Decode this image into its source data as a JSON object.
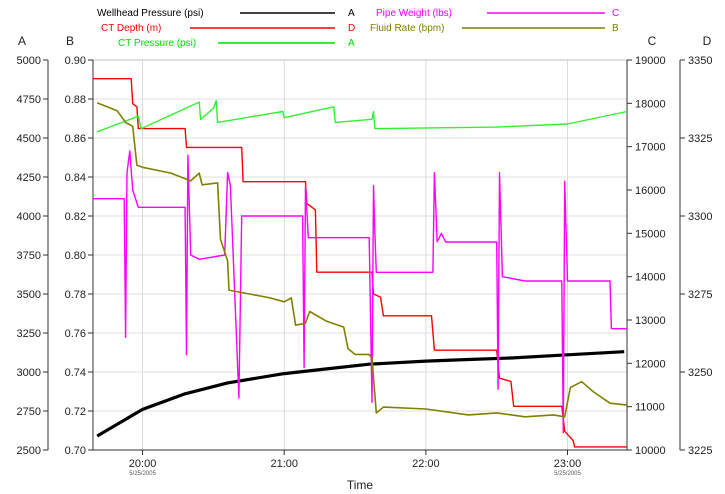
{
  "chart_data": {
    "type": "line",
    "xlabel": "Time",
    "x_ticks": [
      {
        "t": 20.0,
        "label": "20:00",
        "date": "5/25/2005"
      },
      {
        "t": 21.0,
        "label": "21:00",
        "date": ""
      },
      {
        "t": 22.0,
        "label": "22:00",
        "date": ""
      },
      {
        "t": 23.0,
        "label": "23:00",
        "date": "5/25/2005"
      }
    ],
    "xlim": [
      19.65,
      23.42
    ],
    "grid": true,
    "legend_position": "top",
    "axes": [
      {
        "id": "A",
        "letter": "A",
        "side": "left",
        "ylim": [
          2500,
          5000
        ],
        "ticks": [
          5000,
          4750,
          4500,
          4250,
          4000,
          3750,
          3500,
          3250,
          3000,
          2750,
          2500
        ],
        "tick_labels": [
          "5000",
          "4750",
          "4500",
          "4250",
          "4000",
          "3750",
          "3500",
          "3250",
          "3000",
          "2750",
          "2500"
        ]
      },
      {
        "id": "B",
        "letter": "B",
        "side": "left",
        "ylim": [
          0.7,
          0.9
        ],
        "ticks": [
          0.9,
          0.88,
          0.86,
          0.84,
          0.82,
          0.8,
          0.78,
          0.76,
          0.74,
          0.72,
          0.7
        ],
        "tick_labels": [
          "0.90",
          "0.88",
          "0.86",
          "0.84",
          "0.82",
          "0.80",
          "0.78",
          "0.76",
          "0.74",
          "0.72",
          "0.70"
        ]
      },
      {
        "id": "C",
        "letter": "C",
        "side": "right",
        "ylim": [
          10000,
          19000
        ],
        "ticks": [
          19000,
          18000,
          17000,
          16000,
          15000,
          14000,
          13000,
          12000,
          11000,
          10000
        ],
        "tick_labels": [
          "19000",
          "18000",
          "17000",
          "16000",
          "15000",
          "14000",
          "13000",
          "12000",
          "11000",
          "10000"
        ]
      },
      {
        "id": "D",
        "letter": "D",
        "side": "right",
        "ylim": [
          3225,
          3350
        ],
        "ticks": [
          3350,
          3325,
          3300,
          3275,
          3250,
          3225
        ],
        "tick_labels": [
          "3350",
          "3325",
          "3300",
          "3275",
          "3250",
          "3225"
        ]
      }
    ],
    "series": [
      {
        "name": "Wellhead Pressure (psi)",
        "axis": "A",
        "color": "#000000",
        "points": [
          [
            19.68,
            2590
          ],
          [
            20.0,
            2760
          ],
          [
            20.3,
            2860
          ],
          [
            20.6,
            2930
          ],
          [
            21.0,
            2990
          ],
          [
            21.3,
            3020
          ],
          [
            21.6,
            3050
          ],
          [
            22.0,
            3070
          ],
          [
            22.3,
            3080
          ],
          [
            22.6,
            3090
          ],
          [
            23.0,
            3110
          ],
          [
            23.4,
            3130
          ]
        ]
      },
      {
        "name": "CT Depth (m)",
        "axis": "D",
        "color": "#ff0000",
        "points": [
          [
            19.65,
            3344
          ],
          [
            19.92,
            3344
          ],
          [
            19.93,
            3336
          ],
          [
            19.96,
            3335
          ],
          [
            19.97,
            3328
          ],
          [
            20.3,
            3328
          ],
          [
            20.31,
            3322
          ],
          [
            20.7,
            3322
          ],
          [
            20.71,
            3311
          ],
          [
            21.15,
            3311
          ],
          [
            21.16,
            3304
          ],
          [
            21.22,
            3302
          ],
          [
            21.23,
            3282
          ],
          [
            21.62,
            3282
          ],
          [
            21.63,
            3275
          ],
          [
            21.68,
            3274
          ],
          [
            21.7,
            3268
          ],
          [
            22.04,
            3268
          ],
          [
            22.06,
            3257
          ],
          [
            22.5,
            3257
          ],
          [
            22.52,
            3248
          ],
          [
            22.6,
            3247
          ],
          [
            22.62,
            3239
          ],
          [
            22.96,
            3239
          ],
          [
            22.98,
            3231
          ],
          [
            23.04,
            3228
          ],
          [
            23.05,
            3226
          ],
          [
            23.42,
            3226
          ]
        ]
      },
      {
        "name": "CT Pressure (psi)",
        "axis": "A",
        "color": "#33ee33",
        "points": [
          [
            19.68,
            4540
          ],
          [
            19.97,
            4640
          ],
          [
            19.99,
            4560
          ],
          [
            20.4,
            4730
          ],
          [
            20.41,
            4620
          ],
          [
            20.5,
            4690
          ],
          [
            20.52,
            4740
          ],
          [
            20.53,
            4600
          ],
          [
            20.99,
            4670
          ],
          [
            21.0,
            4630
          ],
          [
            21.35,
            4700
          ],
          [
            21.36,
            4600
          ],
          [
            21.62,
            4620
          ],
          [
            21.63,
            4670
          ],
          [
            21.64,
            4560
          ],
          [
            22.5,
            4570
          ],
          [
            23.0,
            4590
          ],
          [
            23.42,
            4670
          ]
        ]
      },
      {
        "name": "Pipe Weight (lbs)",
        "axis": "C",
        "color": "#ff00ff",
        "points": [
          [
            19.65,
            15800
          ],
          [
            19.87,
            15800
          ],
          [
            19.88,
            12600
          ],
          [
            19.89,
            16400
          ],
          [
            19.91,
            16900
          ],
          [
            19.93,
            16000
          ],
          [
            19.97,
            15600
          ],
          [
            20.3,
            15600
          ],
          [
            20.31,
            12200
          ],
          [
            20.32,
            16800
          ],
          [
            20.34,
            14500
          ],
          [
            20.4,
            14400
          ],
          [
            20.58,
            14500
          ],
          [
            20.6,
            16400
          ],
          [
            20.62,
            16100
          ],
          [
            20.68,
            11200
          ],
          [
            20.7,
            15400
          ],
          [
            21.13,
            15400
          ],
          [
            21.14,
            11900
          ],
          [
            21.15,
            16100
          ],
          [
            21.17,
            14900
          ],
          [
            21.6,
            14900
          ],
          [
            21.62,
            11100
          ],
          [
            21.63,
            16100
          ],
          [
            21.64,
            15000
          ],
          [
            21.65,
            14100
          ],
          [
            22.05,
            14100
          ],
          [
            22.06,
            16400
          ],
          [
            22.08,
            14800
          ],
          [
            22.11,
            15000
          ],
          [
            22.14,
            14800
          ],
          [
            22.5,
            14800
          ],
          [
            22.51,
            11400
          ],
          [
            22.52,
            16400
          ],
          [
            22.54,
            14000
          ],
          [
            22.7,
            13900
          ],
          [
            22.96,
            13900
          ],
          [
            22.97,
            10400
          ],
          [
            22.98,
            16200
          ],
          [
            23.0,
            13900
          ],
          [
            23.2,
            13900
          ],
          [
            23.3,
            13900
          ],
          [
            23.31,
            12800
          ],
          [
            23.42,
            12800
          ]
        ]
      },
      {
        "name": "Fluid Rate (bpm)",
        "axis": "B",
        "color": "#808000",
        "points": [
          [
            19.68,
            0.878
          ],
          [
            19.75,
            0.876
          ],
          [
            19.82,
            0.874
          ],
          [
            19.88,
            0.868
          ],
          [
            19.93,
            0.866
          ],
          [
            19.96,
            0.846
          ],
          [
            20.0,
            0.845
          ],
          [
            20.2,
            0.842
          ],
          [
            20.34,
            0.838
          ],
          [
            20.4,
            0.842
          ],
          [
            20.42,
            0.836
          ],
          [
            20.53,
            0.837
          ],
          [
            20.55,
            0.808
          ],
          [
            20.6,
            0.797
          ],
          [
            20.61,
            0.782
          ],
          [
            20.9,
            0.778
          ],
          [
            21.0,
            0.776
          ],
          [
            21.05,
            0.778
          ],
          [
            21.08,
            0.764
          ],
          [
            21.15,
            0.765
          ],
          [
            21.18,
            0.771
          ],
          [
            21.3,
            0.766
          ],
          [
            21.42,
            0.763
          ],
          [
            21.45,
            0.752
          ],
          [
            21.5,
            0.749
          ],
          [
            21.6,
            0.749
          ],
          [
            21.62,
            0.747
          ],
          [
            21.65,
            0.719
          ],
          [
            21.7,
            0.722
          ],
          [
            22.0,
            0.721
          ],
          [
            22.3,
            0.718
          ],
          [
            22.5,
            0.719
          ],
          [
            22.7,
            0.717
          ],
          [
            22.9,
            0.718
          ],
          [
            22.98,
            0.717
          ],
          [
            23.02,
            0.732
          ],
          [
            23.1,
            0.735
          ],
          [
            23.18,
            0.73
          ],
          [
            23.3,
            0.724
          ],
          [
            23.42,
            0.723
          ]
        ]
      }
    ],
    "legend": [
      {
        "label": "Wellhead Pressure (psi)",
        "axis_tag": "A",
        "color": "#000000"
      },
      {
        "label": "CT Depth (m)",
        "axis_tag": "D",
        "color": "#ff0000"
      },
      {
        "label": "CT Pressure (psi)",
        "axis_tag": "A",
        "color": "#00dd00"
      },
      {
        "label": "Pipe Weight (lbs)",
        "axis_tag": "C",
        "color": "#ff00ff"
      },
      {
        "label": "Fluid Rate (bpm)",
        "axis_tag": "B",
        "color": "#808000"
      }
    ]
  }
}
